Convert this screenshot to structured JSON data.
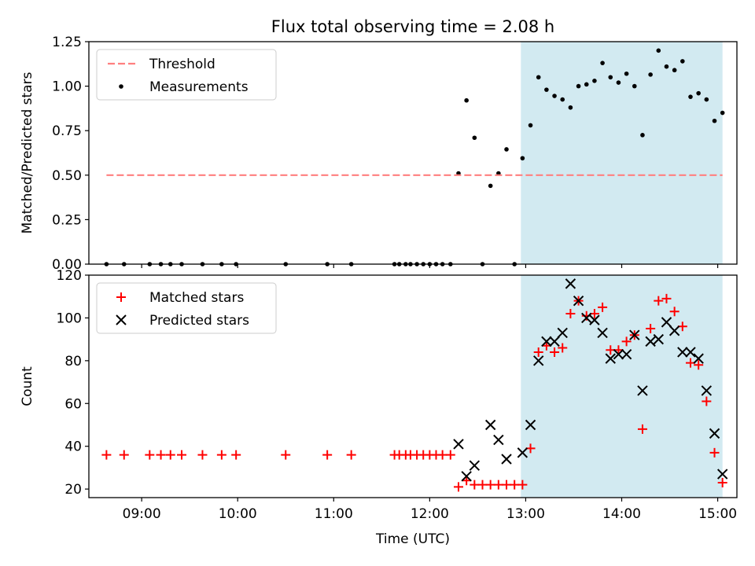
{
  "title": "Flux total observing time = 2.08 h",
  "colors": {
    "highlight": "#add8e6",
    "threshold": "#ff7f7f",
    "measurement": "#000000",
    "matched": "#ff0000",
    "predicted": "#000000"
  },
  "chart_data": [
    {
      "type": "scatter",
      "ylabel": "Matched/Predicted stars",
      "xlabel": "",
      "xlim": [
        "08:27",
        "15:12"
      ],
      "ylim": [
        0,
        1.25
      ],
      "yticks": [
        0.0,
        0.25,
        0.5,
        0.75,
        1.0,
        1.25
      ],
      "ytick_labels": [
        "0.00",
        "0.25",
        "0.50",
        "0.75",
        "1.00",
        "1.25"
      ],
      "highlight_span": [
        "12:57",
        "15:03"
      ],
      "threshold": {
        "name": "Threshold",
        "value": 0.5,
        "x_range": [
          "08:38",
          "15:03"
        ]
      },
      "legend": {
        "location": "upper-left",
        "entries": [
          "Threshold",
          "Measurements"
        ]
      },
      "series": [
        {
          "name": "Measurements",
          "marker": "dot",
          "points": [
            [
              "08:38",
              0
            ],
            [
              "08:49",
              0
            ],
            [
              "09:05",
              0
            ],
            [
              "09:12",
              0
            ],
            [
              "09:18",
              0
            ],
            [
              "09:25",
              0
            ],
            [
              "09:38",
              0
            ],
            [
              "09:50",
              0
            ],
            [
              "09:59",
              0
            ],
            [
              "10:30",
              0
            ],
            [
              "10:56",
              0
            ],
            [
              "11:11",
              0
            ],
            [
              "11:38",
              0
            ],
            [
              "11:41",
              0
            ],
            [
              "11:45",
              0
            ],
            [
              "11:48",
              0
            ],
            [
              "11:52",
              0
            ],
            [
              "11:56",
              0
            ],
            [
              "12:00",
              0
            ],
            [
              "12:04",
              0
            ],
            [
              "12:08",
              0
            ],
            [
              "12:13",
              0
            ],
            [
              "12:18",
              0.51
            ],
            [
              "12:23",
              0.92
            ],
            [
              "12:28",
              0.71
            ],
            [
              "12:33",
              0
            ],
            [
              "12:38",
              0.44
            ],
            [
              "12:43",
              0.51
            ],
            [
              "12:48",
              0.645
            ],
            [
              "12:53",
              0
            ],
            [
              "12:58",
              0.595
            ],
            [
              "13:03",
              0.78
            ],
            [
              "13:08",
              1.05
            ],
            [
              "13:13",
              0.98
            ],
            [
              "13:18",
              0.945
            ],
            [
              "13:23",
              0.925
            ],
            [
              "13:28",
              0.88
            ],
            [
              "13:33",
              1.0
            ],
            [
              "13:38",
              1.01
            ],
            [
              "13:43",
              1.03
            ],
            [
              "13:48",
              1.13
            ],
            [
              "13:53",
              1.05
            ],
            [
              "13:58",
              1.02
            ],
            [
              "14:03",
              1.07
            ],
            [
              "14:08",
              1.0
            ],
            [
              "14:13",
              0.725
            ],
            [
              "14:18",
              1.065
            ],
            [
              "14:23",
              1.2
            ],
            [
              "14:28",
              1.11
            ],
            [
              "14:33",
              1.09
            ],
            [
              "14:38",
              1.14
            ],
            [
              "14:43",
              0.94
            ],
            [
              "14:48",
              0.96
            ],
            [
              "14:53",
              0.925
            ],
            [
              "14:58",
              0.805
            ],
            [
              "15:03",
              0.85
            ]
          ]
        }
      ]
    },
    {
      "type": "scatter",
      "xlabel": "Time (UTC)",
      "ylabel": "Count",
      "xlim": [
        "08:27",
        "15:12"
      ],
      "ylim": [
        16,
        120
      ],
      "yticks": [
        20,
        40,
        60,
        80,
        100,
        120
      ],
      "xticks": [
        "09:00",
        "10:00",
        "11:00",
        "12:00",
        "13:00",
        "14:00",
        "15:00"
      ],
      "highlight_span": [
        "12:57",
        "15:03"
      ],
      "legend": {
        "location": "upper-left",
        "entries": [
          "Matched stars",
          "Predicted stars"
        ]
      },
      "series": [
        {
          "name": "Matched stars",
          "marker": "plus",
          "points": [
            [
              "08:38",
              36
            ],
            [
              "08:49",
              36
            ],
            [
              "09:05",
              36
            ],
            [
              "09:12",
              36
            ],
            [
              "09:18",
              36
            ],
            [
              "09:25",
              36
            ],
            [
              "09:38",
              36
            ],
            [
              "09:50",
              36
            ],
            [
              "09:59",
              36
            ],
            [
              "10:30",
              36
            ],
            [
              "10:56",
              36
            ],
            [
              "11:11",
              36
            ],
            [
              "11:38",
              36
            ],
            [
              "11:41",
              36
            ],
            [
              "11:45",
              36
            ],
            [
              "11:48",
              36
            ],
            [
              "11:52",
              36
            ],
            [
              "11:56",
              36
            ],
            [
              "12:00",
              36
            ],
            [
              "12:04",
              36
            ],
            [
              "12:08",
              36
            ],
            [
              "12:13",
              36
            ],
            [
              "12:18",
              21
            ],
            [
              "12:23",
              24
            ],
            [
              "12:28",
              22
            ],
            [
              "12:33",
              22
            ],
            [
              "12:38",
              22
            ],
            [
              "12:43",
              22
            ],
            [
              "12:48",
              22
            ],
            [
              "12:53",
              22
            ],
            [
              "12:58",
              22
            ],
            [
              "13:03",
              39
            ],
            [
              "13:08",
              84
            ],
            [
              "13:13",
              87
            ],
            [
              "13:18",
              84
            ],
            [
              "13:23",
              86
            ],
            [
              "13:28",
              102
            ],
            [
              "13:33",
              108
            ],
            [
              "13:38",
              101
            ],
            [
              "13:43",
              102
            ],
            [
              "13:48",
              105
            ],
            [
              "13:53",
              85
            ],
            [
              "13:58",
              85
            ],
            [
              "14:03",
              89
            ],
            [
              "14:08",
              92
            ],
            [
              "14:13",
              48
            ],
            [
              "14:18",
              95
            ],
            [
              "14:23",
              108
            ],
            [
              "14:28",
              109
            ],
            [
              "14:33",
              103
            ],
            [
              "14:38",
              96
            ],
            [
              "14:43",
              79
            ],
            [
              "14:48",
              78
            ],
            [
              "14:53",
              61
            ],
            [
              "14:58",
              37
            ],
            [
              "15:03",
              23
            ]
          ]
        },
        {
          "name": "Predicted stars",
          "marker": "x",
          "points": [
            [
              "12:18",
              41
            ],
            [
              "12:23",
              26
            ],
            [
              "12:28",
              31
            ],
            [
              "12:38",
              50
            ],
            [
              "12:43",
              43
            ],
            [
              "12:48",
              34
            ],
            [
              "12:58",
              37
            ],
            [
              "13:03",
              50
            ],
            [
              "13:08",
              80
            ],
            [
              "13:13",
              89
            ],
            [
              "13:18",
              89
            ],
            [
              "13:23",
              93
            ],
            [
              "13:28",
              116
            ],
            [
              "13:33",
              108
            ],
            [
              "13:38",
              100
            ],
            [
              "13:43",
              99
            ],
            [
              "13:48",
              93
            ],
            [
              "13:53",
              81
            ],
            [
              "13:58",
              83
            ],
            [
              "14:03",
              83
            ],
            [
              "14:08",
              92
            ],
            [
              "14:13",
              66
            ],
            [
              "14:18",
              89
            ],
            [
              "14:23",
              90
            ],
            [
              "14:28",
              98
            ],
            [
              "14:33",
              94
            ],
            [
              "14:38",
              84
            ],
            [
              "14:43",
              84
            ],
            [
              "14:48",
              81
            ],
            [
              "14:53",
              66
            ],
            [
              "14:58",
              46
            ],
            [
              "15:03",
              27
            ]
          ]
        }
      ]
    }
  ]
}
